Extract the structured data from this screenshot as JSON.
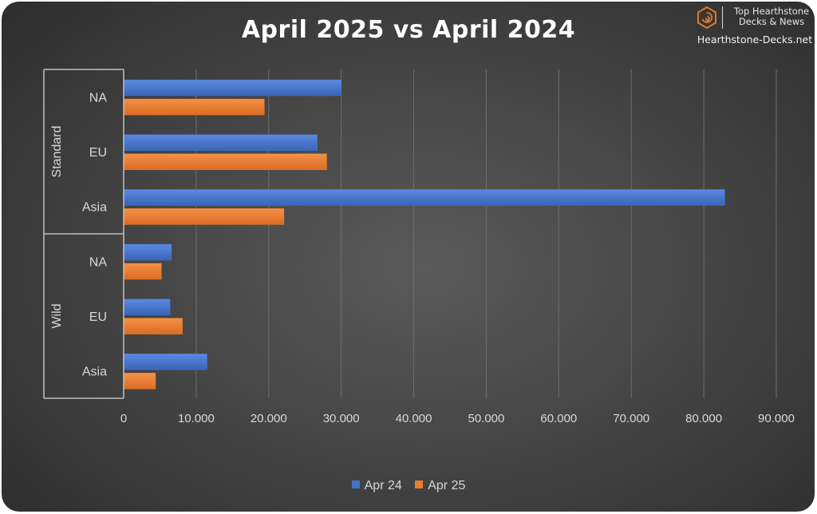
{
  "header": {
    "title": "April 2025 vs April 2024"
  },
  "brand": {
    "line1": "Top Hearthstone",
    "line2": "Decks & News",
    "site": "Hearthstone-Decks.net",
    "logo_icon": "hexagon-swirl-logo-icon",
    "logo_color": "#e07a2c"
  },
  "chart_data": {
    "type": "bar",
    "orientation": "horizontal",
    "title": "April 2025 vs April 2024",
    "groups": [
      {
        "name": "Standard",
        "categories": [
          "NA",
          "EU",
          "Asia"
        ]
      },
      {
        "name": "Wild",
        "categories": [
          "NA",
          "EU",
          "Asia"
        ]
      }
    ],
    "series": [
      {
        "name": "Apr 24",
        "color": "#4472c4",
        "values": [
          30000,
          26700,
          82900,
          6600,
          6400,
          11500
        ]
      },
      {
        "name": "Apr 25",
        "color": "#ed7d31",
        "values": [
          19400,
          28000,
          22100,
          5200,
          8100,
          4400
        ]
      }
    ],
    "xlim": [
      0,
      90000
    ],
    "xticks": [
      0,
      10000,
      20000,
      30000,
      40000,
      50000,
      60000,
      70000,
      80000,
      90000
    ],
    "xtick_labels": [
      "0",
      "10.000",
      "20.000",
      "30.000",
      "40.000",
      "50.000",
      "60.000",
      "70.000",
      "80.000",
      "90.000"
    ],
    "grid": true,
    "legend_position": "bottom"
  }
}
